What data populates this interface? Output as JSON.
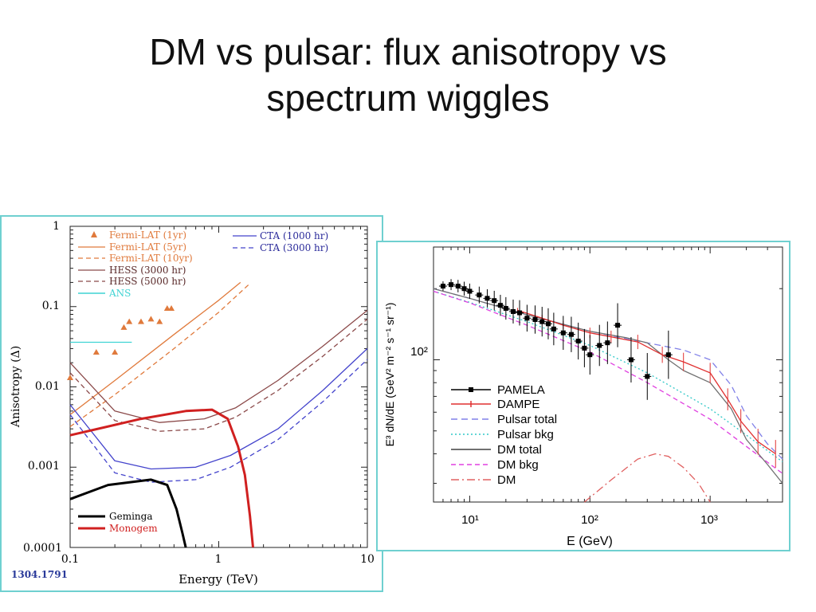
{
  "slide": {
    "title_line1": "DM vs pulsar: flux anisotropy vs",
    "title_line2": "spectrum wiggles"
  },
  "chart_data": [
    {
      "type": "line",
      "id": "anisotropy",
      "title": "",
      "xlabel": "Energy (TeV)",
      "ylabel": "Anisotropy (Δ)",
      "xscale": "log",
      "yscale": "log",
      "xlim": [
        0.1,
        10
      ],
      "ylim": [
        0.0001,
        1
      ],
      "xticks": [
        "0.1",
        "1",
        "10"
      ],
      "yticks": [
        "0.0001",
        "0.001",
        "0.01",
        "0.1",
        "1"
      ],
      "arxiv_label": "1304.1791",
      "legend_upper_left": [
        {
          "name": "Fermi-LAT (1yr)",
          "color": "#e07a3c",
          "style": "triangle"
        },
        {
          "name": "Fermi-LAT (5yr)",
          "color": "#e07a3c",
          "style": "solid"
        },
        {
          "name": "Fermi-LAT (10yr)",
          "color": "#e07a3c",
          "style": "dashed"
        },
        {
          "name": "HESS (3000 hr)",
          "color": "#8b4a4a",
          "style": "solid"
        },
        {
          "name": "HESS (5000 hr)",
          "color": "#8b4a4a",
          "style": "dashed"
        },
        {
          "name": "ANS",
          "color": "#3fd3d3",
          "style": "solid"
        }
      ],
      "legend_upper_right": [
        {
          "name": "CTA (1000 hr)",
          "color": "#4444cc",
          "style": "solid"
        },
        {
          "name": "CTA (3000 hr)",
          "color": "#4444cc",
          "style": "dashed"
        }
      ],
      "legend_lower_left": [
        {
          "name": "Geminga",
          "color": "#000000",
          "style": "solid"
        },
        {
          "name": "Monogem",
          "color": "#d02020",
          "style": "solid"
        }
      ],
      "series": [
        {
          "name": "Fermi-LAT (1yr)",
          "color": "#e07a3c",
          "marker": "triangle",
          "x": [
            0.1,
            0.15,
            0.2,
            0.23,
            0.25,
            0.3,
            0.35,
            0.4,
            0.45,
            0.48
          ],
          "y": [
            0.013,
            0.027,
            0.027,
            0.055,
            0.065,
            0.065,
            0.07,
            0.065,
            0.095,
            0.095
          ]
        },
        {
          "name": "Fermi-LAT (5yr)",
          "color": "#e07a3c",
          "dash": "",
          "x": [
            0.1,
            0.2,
            0.5,
            1.0,
            1.4
          ],
          "y": [
            0.0045,
            0.012,
            0.045,
            0.12,
            0.2
          ]
        },
        {
          "name": "Fermi-LAT (10yr)",
          "color": "#e07a3c",
          "dash": "6,4",
          "x": [
            0.1,
            0.2,
            0.5,
            1.0,
            1.6
          ],
          "y": [
            0.0032,
            0.008,
            0.03,
            0.085,
            0.19
          ]
        },
        {
          "name": "HESS (3000 hr)",
          "color": "#8b4a4a",
          "dash": "",
          "x": [
            0.1,
            0.2,
            0.4,
            0.8,
            1.3,
            2.5,
            5,
            10
          ],
          "y": [
            0.02,
            0.005,
            0.0036,
            0.004,
            0.0055,
            0.012,
            0.032,
            0.09
          ]
        },
        {
          "name": "HESS (5000 hr)",
          "color": "#8b4a4a",
          "dash": "6,4",
          "x": [
            0.1,
            0.2,
            0.4,
            0.8,
            1.3,
            2.5,
            5,
            10
          ],
          "y": [
            0.015,
            0.0038,
            0.0028,
            0.003,
            0.0042,
            0.009,
            0.024,
            0.07
          ]
        },
        {
          "name": "CTA (1000 hr)",
          "color": "#4444cc",
          "dash": "",
          "x": [
            0.1,
            0.2,
            0.35,
            0.7,
            1.2,
            2.5,
            5,
            10
          ],
          "y": [
            0.006,
            0.0012,
            0.00095,
            0.001,
            0.0014,
            0.003,
            0.009,
            0.03
          ]
        },
        {
          "name": "CTA (3000 hr)",
          "color": "#4444cc",
          "dash": "6,4",
          "x": [
            0.1,
            0.2,
            0.35,
            0.7,
            1.2,
            2.5,
            5,
            10
          ],
          "y": [
            0.0045,
            0.00085,
            0.00065,
            0.0007,
            0.001,
            0.0022,
            0.0065,
            0.022
          ]
        },
        {
          "name": "ANS",
          "color": "#3fd3d3",
          "dash": "",
          "x": [
            0.1,
            0.26
          ],
          "y": [
            0.036,
            0.036
          ]
        },
        {
          "name": "Geminga",
          "color": "#000000",
          "dash": "",
          "width": 3,
          "x": [
            0.1,
            0.18,
            0.35,
            0.45,
            0.52,
            0.57,
            0.6
          ],
          "y": [
            0.0004,
            0.0006,
            0.0007,
            0.0006,
            0.0003,
            0.00015,
            0.0001
          ]
        },
        {
          "name": "Monogem",
          "color": "#d02020",
          "dash": "",
          "width": 3,
          "x": [
            0.1,
            0.3,
            0.6,
            0.9,
            1.15,
            1.35,
            1.5,
            1.62,
            1.7
          ],
          "y": [
            0.0025,
            0.004,
            0.005,
            0.0052,
            0.004,
            0.0018,
            0.0008,
            0.00025,
            0.0001
          ]
        }
      ]
    },
    {
      "type": "line",
      "id": "spectrum",
      "title": "",
      "xlabel": "E (GeV)",
      "ylabel": "E³ dN/dE (GeV² m⁻² s⁻¹ sr⁻¹)",
      "xscale": "log",
      "yscale": "log",
      "xlim": [
        5,
        4000
      ],
      "ylim": [
        25,
        300
      ],
      "xticks": [
        "10¹",
        "10²",
        "10³"
      ],
      "yticks": [
        "10²"
      ],
      "legend": [
        {
          "name": "PAMELA",
          "color": "#000000",
          "style": "errorbar"
        },
        {
          "name": "DAMPE",
          "color": "#e03030",
          "style": "errorbar"
        },
        {
          "name": "Pulsar total",
          "color": "#8080e8",
          "style": "dashed"
        },
        {
          "name": "Pulsar bkg",
          "color": "#30c8c8",
          "style": "dotted"
        },
        {
          "name": "DM total",
          "color": "#707070",
          "style": "solid"
        },
        {
          "name": "DM bkg",
          "color": "#e040e0",
          "style": "dashed"
        },
        {
          "name": "DM",
          "color": "#e06060",
          "style": "dashdot"
        }
      ],
      "series": [
        {
          "name": "Pulsar bkg",
          "color": "#30c8c8",
          "dash": "2,3",
          "x": [
            5,
            10,
            30,
            100,
            300,
            1000,
            2000,
            4000
          ],
          "y": [
            195,
            175,
            145,
            115,
            88,
            62,
            48,
            37
          ]
        },
        {
          "name": "DM bkg",
          "color": "#e040e0",
          "dash": "6,4",
          "x": [
            5,
            10,
            30,
            100,
            300,
            1000,
            2000,
            4000
          ],
          "y": [
            195,
            174,
            140,
            108,
            80,
            56,
            43,
            33
          ]
        },
        {
          "name": "Pulsar total",
          "color": "#8080e8",
          "dash": "8,5",
          "x": [
            5,
            10,
            30,
            100,
            300,
            600,
            1000,
            1500,
            2000,
            3000,
            4000
          ],
          "y": [
            200,
            182,
            155,
            132,
            118,
            110,
            100,
            78,
            58,
            44,
            38
          ]
        },
        {
          "name": "DM total",
          "color": "#707070",
          "dash": "",
          "x": [
            5,
            10,
            30,
            100,
            200,
            300,
            450,
            600,
            1000,
            1500,
            2000,
            3000,
            4000
          ],
          "y": [
            200,
            182,
            155,
            132,
            124,
            118,
            100,
            90,
            80,
            62,
            46,
            36,
            30
          ]
        },
        {
          "name": "DM",
          "color": "#e06060",
          "dash": "10,4,2,4",
          "x": [
            90,
            150,
            250,
            350,
            450,
            600,
            800,
            1000
          ],
          "y": [
            25,
            31,
            38,
            40,
            39,
            35,
            30,
            25
          ]
        },
        {
          "name": "DAMPE",
          "color": "#e03030",
          "dash": "",
          "x": [
            25,
            40,
            60,
            100,
            150,
            250,
            400,
            600,
            1000,
            1400,
            1800,
            2500,
            3500
          ],
          "y": [
            162,
            150,
            140,
            130,
            125,
            119,
            105,
            98,
            88,
            68,
            55,
            45,
            40
          ]
        },
        {
          "name": "PAMELA",
          "color": "#000000",
          "marker": "square",
          "x": [
            6,
            7,
            8,
            9,
            10,
            12,
            14,
            16,
            18,
            20,
            23,
            26,
            30,
            35,
            40,
            45,
            50,
            60,
            70,
            80,
            90,
            100,
            120,
            140,
            170,
            220,
            300,
            450
          ],
          "y": [
            205,
            208,
            205,
            200,
            195,
            188,
            182,
            178,
            170,
            165,
            160,
            158,
            150,
            148,
            145,
            142,
            135,
            130,
            128,
            120,
            112,
            105,
            115,
            118,
            140,
            100,
            85,
            105
          ]
        }
      ]
    }
  ]
}
